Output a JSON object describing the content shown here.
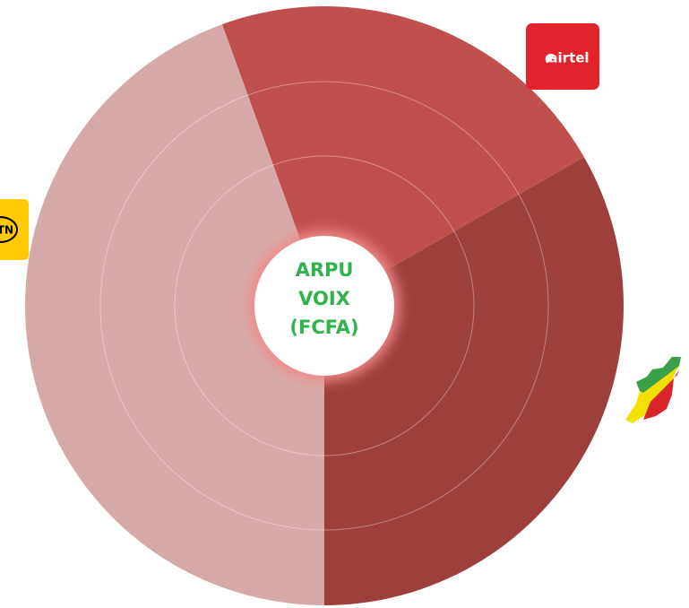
{
  "chart_data": {
    "type": "pie",
    "title": [
      "ARPU",
      "VOIX",
      "(FCFA)"
    ],
    "categories": [
      "MTN",
      "airtel",
      null
    ],
    "values": [
      44.5,
      22.3,
      33.3
    ],
    "colors": [
      "#d6a9a8",
      "#c0504d",
      "#9d3f3d"
    ]
  }
}
